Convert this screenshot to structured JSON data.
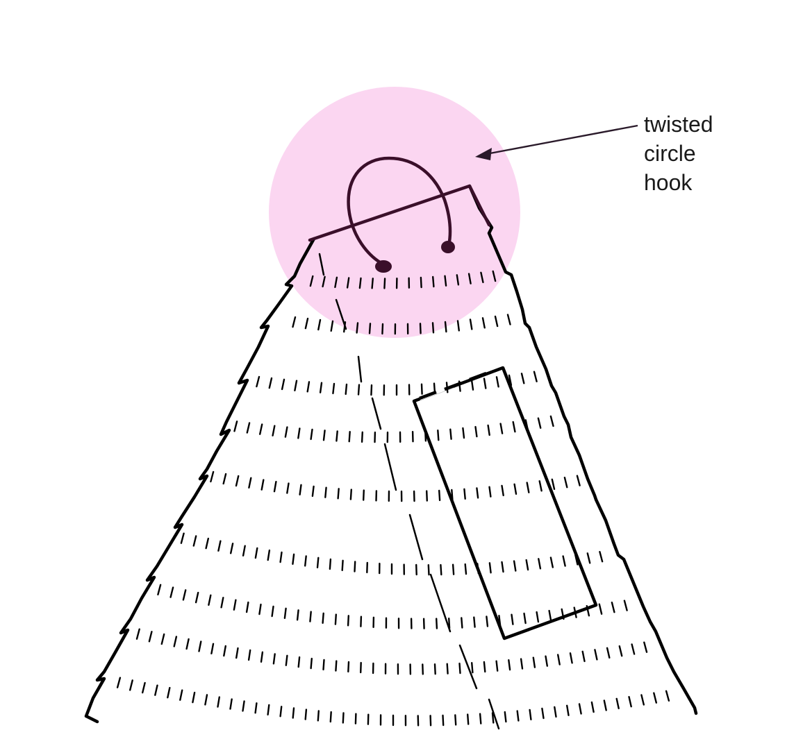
{
  "annotation": {
    "lines": [
      "twisted",
      "circle",
      "hook"
    ]
  },
  "colors": {
    "highlight": "#fbd6f1",
    "hook": "#3a0f2a",
    "outline": "#000000",
    "arrow": "#2a1a2a",
    "text": "#1a1a1a"
  },
  "icons": {
    "hook": "twisted-circle-hook-icon",
    "arrow": "arrow-left-icon"
  }
}
